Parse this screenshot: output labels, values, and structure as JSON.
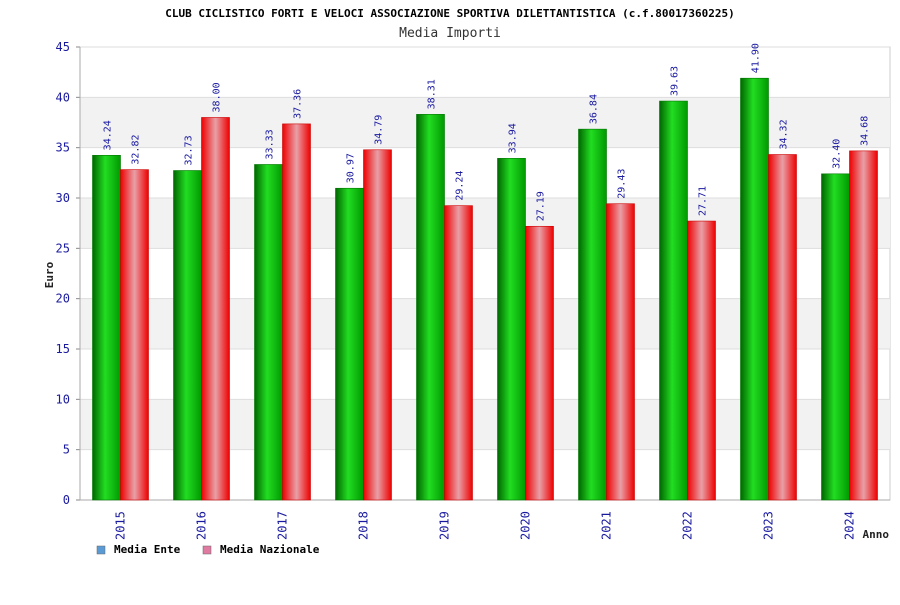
{
  "chart_data": {
    "type": "bar",
    "title": "CLUB CICLISTICO FORTI E VELOCI ASSOCIAZIONE SPORTIVA DILETTANTISTICA (c.f.80017360225)",
    "subtitle": "Media Importi",
    "xlabel": "Anno",
    "ylabel": "Euro",
    "ylim": [
      0,
      45
    ],
    "yticks": [
      0,
      5,
      10,
      15,
      20,
      25,
      30,
      35,
      40,
      45
    ],
    "categories": [
      "2015",
      "2016",
      "2017",
      "2018",
      "2019",
      "2020",
      "2021",
      "2022",
      "2023",
      "2024"
    ],
    "series": [
      {
        "name": "Media Ente",
        "values": [
          34.24,
          32.73,
          33.33,
          30.97,
          38.31,
          33.94,
          36.84,
          39.63,
          41.9,
          32.4
        ],
        "labels": [
          "34.24",
          "32.73",
          "33.33",
          "30.97",
          "38.31",
          "33.94",
          "36.84",
          "39.63",
          "41.90",
          "32.40"
        ]
      },
      {
        "name": "Media Nazionale",
        "values": [
          32.82,
          38.0,
          37.36,
          34.79,
          29.24,
          27.19,
          29.43,
          27.71,
          34.32,
          34.68
        ],
        "labels": [
          "32.82",
          "38.00",
          "37.36",
          "34.79",
          "29.24",
          "27.19",
          "29.43",
          "27.71",
          "34.32",
          "34.68"
        ]
      }
    ],
    "legend": {
      "position": "bottom-left"
    },
    "colors": {
      "ente": "#00aa00",
      "nazionale": "#ee1111",
      "legend_ente": "#5b9bd5",
      "legend_nazionale": "#e07aa0",
      "band": "#f2f2f2",
      "grid": "#dddddd"
    },
    "grid": true
  }
}
